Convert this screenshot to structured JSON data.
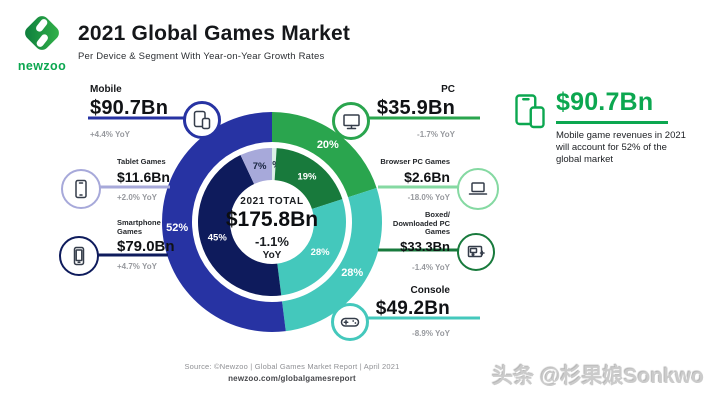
{
  "header": {
    "logo_word": "newzoo",
    "title": "2021 Global Games Market",
    "subtitle": "Per Device & Segment With Year-on-Year Growth Rates"
  },
  "center": {
    "line1": "2021 TOTAL",
    "value": "$175.8Bn",
    "yoy": "-1.1%",
    "yoy_unit": "YoY"
  },
  "callouts": {
    "mobile": {
      "label": "Mobile",
      "value": "$90.7Bn",
      "yoy": "+4.4% YoY"
    },
    "tablet": {
      "label": "Tablet Games",
      "value": "$11.6Bn",
      "yoy": "+2.0% YoY"
    },
    "smartphone": {
      "label": "Smartphone Games",
      "value": "$79.0Bn",
      "yoy": "+4.7% YoY"
    },
    "pc": {
      "label": "PC",
      "value": "$35.9Bn",
      "yoy": "-1.7% YoY"
    },
    "browser": {
      "label": "Browser PC Games",
      "value": "$2.6Bn",
      "yoy": "-18.0% YoY"
    },
    "boxed": {
      "label": "Boxed/ Downloaded PC Games",
      "value": "$33.3Bn",
      "yoy": "-1.4% YoY"
    },
    "console": {
      "label": "Console",
      "value": "$49.2Bn",
      "yoy": "-8.9% YoY"
    }
  },
  "highlight": {
    "value": "$90.7Bn",
    "text": "Mobile game revenues in 2021 will account for 52% of the global market"
  },
  "footer": {
    "source": "Source: ©Newzoo | Global Games Market Report | April 2021",
    "url": "newzoo.com/globalgamesreport"
  },
  "watermark": "头条 @杉果娘Sonkwo",
  "colors": {
    "royal_blue": "#2733a3",
    "navy": "#0e1b5c",
    "teal": "#44c8bc",
    "green": "#2aa54e",
    "dark_green": "#187a3c",
    "light_green": "#85d9a2",
    "lavender": "#a7a9da",
    "pale_mint": "#dcf0e8",
    "accent_green": "#0ca750",
    "gray_text": "#97999e"
  },
  "chart_data": {
    "type": "pie",
    "subtype": "double-ring donut",
    "title": "2021 Global Games Market",
    "subtitle": "Per Device & Segment With Year-on-Year Growth Rates",
    "center_total": "$175.8Bn",
    "center_yoy": "-1.1% YoY",
    "units": "USD billions, share of 2021 total",
    "start_angle_deg": 0,
    "direction": "clockwise",
    "outer_ring": {
      "name": "Device",
      "segments": [
        {
          "name": "PC",
          "value_bn": 35.9,
          "pct": 20,
          "yoy": "-1.7%",
          "color": "#2aa54e",
          "label_color": "#ffffff"
        },
        {
          "name": "Console",
          "value_bn": 49.2,
          "pct": 28,
          "yoy": "-8.9%",
          "color": "#44c8bc",
          "label_color": "#ffffff"
        },
        {
          "name": "Mobile",
          "value_bn": 90.7,
          "pct": 52,
          "yoy": "+4.4%",
          "color": "#2733a3",
          "label_color": "#ffffff"
        }
      ]
    },
    "inner_ring": {
      "name": "Segment",
      "segments": [
        {
          "name": "Browser PC Games",
          "value_bn": 2.6,
          "pct": 1,
          "yoy": "-18.0%",
          "color": "#dcf0e8",
          "label_color": "#16233f"
        },
        {
          "name": "Boxed/Downloaded PC Games",
          "value_bn": 33.3,
          "pct": 19,
          "yoy": "-1.4%",
          "color": "#187a3c",
          "label_color": "#ffffff"
        },
        {
          "name": "Console",
          "value_bn": 49.2,
          "pct": 28,
          "yoy": "-8.9%",
          "color": "#44c8bc",
          "label_color": "#ffffff"
        },
        {
          "name": "Smartphone Games",
          "value_bn": 79.0,
          "pct": 45,
          "yoy": "+4.7%",
          "color": "#0e1b5c",
          "label_color": "#ffffff"
        },
        {
          "name": "Tablet Games",
          "value_bn": 11.6,
          "pct": 7,
          "yoy": "+2.0%",
          "color": "#a7a9da",
          "label_color": "#16233f"
        }
      ]
    }
  }
}
